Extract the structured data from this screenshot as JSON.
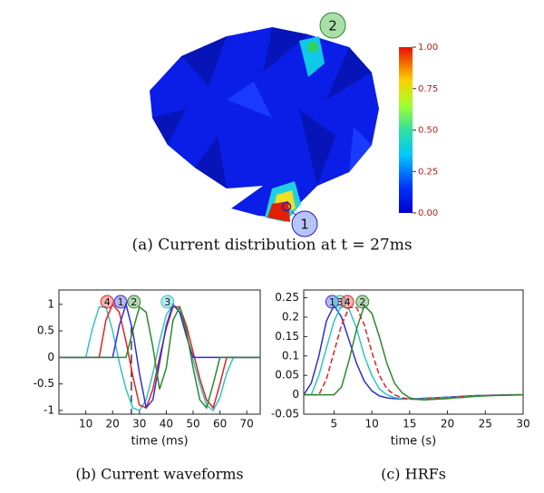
{
  "panel_a": {
    "caption": "(a) Current distribution at t = 27ms",
    "markers": [
      "1",
      "2"
    ],
    "colorbar": {
      "lim": [
        0,
        1
      ],
      "ticks": [
        {
          "value": 0,
          "label": "0.00"
        },
        {
          "value": 0.25,
          "label": "0.25"
        },
        {
          "value": 0.5,
          "label": "0.50"
        },
        {
          "value": 0.75,
          "label": "0.75"
        },
        {
          "value": 1,
          "label": "1.00"
        }
      ]
    }
  },
  "chart_data": [
    {
      "type": "line",
      "caption": "(b) Current waveforms",
      "xlabel": "time (ms)",
      "xlim": [
        0,
        75
      ],
      "ylim": [
        -1.07,
        1.27
      ],
      "xticks": [
        10,
        20,
        30,
        40,
        50,
        60,
        70
      ],
      "yticks": [
        -1,
        -0.5,
        0,
        0.5,
        1
      ],
      "vline": 27,
      "x": [
        0,
        2.5,
        5,
        7.5,
        10,
        12.5,
        15,
        17.5,
        20,
        22.5,
        25,
        27.5,
        30,
        32.5,
        35,
        37.5,
        40,
        42.5,
        45,
        47.5,
        50,
        52.5,
        55,
        57.5,
        60,
        62.5,
        65,
        67.5,
        70,
        72.5,
        75
      ],
      "series": [
        {
          "name": "3",
          "color": "#30c4c4",
          "values": [
            0,
            0,
            0,
            0,
            0,
            0.55,
            0.95,
            0.95,
            0.5,
            -0.1,
            -0.6,
            -0.95,
            -1,
            -0.8,
            -0.3,
            0.3,
            0.8,
            1,
            0.85,
            0.45,
            -0.05,
            -0.5,
            -0.9,
            -1,
            -0.75,
            -0.3,
            0,
            0,
            0,
            0,
            0
          ]
        },
        {
          "name": "4",
          "color": "#e02424",
          "values": [
            0,
            0,
            0,
            0,
            0,
            0,
            0,
            0.7,
            1,
            0.85,
            0.3,
            -0.35,
            -0.9,
            -0.95,
            -0.6,
            0,
            0.55,
            0.95,
            0.95,
            0.6,
            0.1,
            -0.4,
            -0.8,
            -0.95,
            -0.5,
            0,
            0,
            0,
            0,
            0,
            0
          ]
        },
        {
          "name": "1",
          "color": "#2f2fd8",
          "values": [
            0,
            0,
            0,
            0,
            0,
            0,
            0,
            0,
            0,
            0.6,
            1,
            0.5,
            -0.3,
            -0.95,
            -0.8,
            -0.1,
            0.6,
            1,
            0.85,
            0.4,
            0,
            0,
            0,
            0,
            0,
            0,
            0,
            0,
            0,
            0,
            0
          ]
        },
        {
          "name": "2",
          "color": "#2a8a2a",
          "values": [
            0,
            0,
            0,
            0,
            0,
            0,
            0,
            0,
            0,
            0,
            0,
            0.5,
            0.95,
            0.85,
            0.2,
            -0.6,
            -0.2,
            0.7,
            0.95,
            0.5,
            -0.2,
            -0.8,
            -0.95,
            -0.5,
            0,
            0,
            0,
            0,
            0,
            0,
            0
          ]
        }
      ]
    },
    {
      "type": "line",
      "caption": "(c) HRFs",
      "xlabel": "time (s)",
      "xlim": [
        1,
        30
      ],
      "ylim": [
        -0.05,
        0.27
      ],
      "xticks": [
        5,
        10,
        15,
        20,
        25,
        30
      ],
      "yticks": [
        -0.05,
        0,
        0.05,
        0.1,
        0.15,
        0.2,
        0.25
      ],
      "x": [
        1,
        2,
        3,
        4,
        5,
        6,
        7,
        8,
        9,
        10,
        11,
        12,
        13,
        14,
        15,
        16,
        17,
        18,
        19,
        20,
        21,
        22,
        23,
        24,
        25,
        26,
        27,
        28,
        29,
        30
      ],
      "series": [
        {
          "name": "1",
          "color": "#2f2fd8",
          "values": [
            0,
            0.03,
            0.1,
            0.19,
            0.23,
            0.2,
            0.14,
            0.08,
            0.035,
            0.01,
            -0.003,
            -0.008,
            -0.01,
            -0.011,
            -0.011,
            -0.01,
            -0.009,
            -0.008,
            -0.007,
            -0.006,
            -0.005,
            -0.004,
            -0.003,
            -0.002,
            -0.002,
            -0.001,
            -0.001,
            0,
            0,
            0
          ]
        },
        {
          "name": "3",
          "color": "#30c4c4",
          "values": [
            0,
            0,
            0.05,
            0.12,
            0.19,
            0.23,
            0.22,
            0.17,
            0.1,
            0.05,
            0.015,
            0,
            -0.007,
            -0.01,
            -0.011,
            -0.011,
            -0.01,
            -0.009,
            -0.008,
            -0.007,
            -0.006,
            -0.005,
            -0.004,
            -0.003,
            -0.002,
            -0.002,
            -0.001,
            -0.001,
            0,
            0
          ]
        },
        {
          "name": "4",
          "color": "#e02424",
          "dashed": true,
          "values": [
            0,
            0,
            0,
            0.04,
            0.11,
            0.18,
            0.225,
            0.225,
            0.18,
            0.11,
            0.05,
            0.015,
            0,
            -0.008,
            -0.011,
            -0.012,
            -0.011,
            -0.01,
            -0.009,
            -0.008,
            -0.006,
            -0.005,
            -0.004,
            -0.003,
            -0.002,
            -0.002,
            -0.001,
            -0.001,
            0,
            0
          ]
        },
        {
          "name": "2",
          "color": "#2a8a2a",
          "values": [
            0,
            0,
            0,
            0,
            0,
            0.02,
            0.09,
            0.17,
            0.23,
            0.21,
            0.15,
            0.08,
            0.03,
            0.005,
            -0.008,
            -0.012,
            -0.013,
            -0.012,
            -0.011,
            -0.01,
            -0.008,
            -0.007,
            -0.005,
            -0.004,
            -0.003,
            -0.002,
            -0.002,
            -0.001,
            -0.001,
            0
          ]
        }
      ]
    }
  ]
}
